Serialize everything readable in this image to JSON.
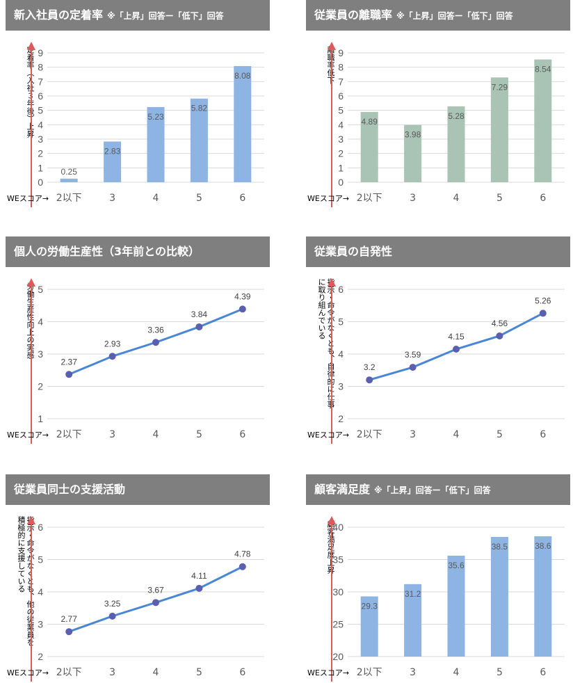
{
  "x_prefix": "WEスコア→",
  "colors": {
    "bar_blue": "#8db4e2",
    "bar_green": "#a9c4b5",
    "line": "#4a86d6",
    "marker": "#5a5fb0",
    "axis_arrow": "#e0595a",
    "header": "#7f7f7f"
  },
  "charts": [
    {
      "title": "新入社員の定着率",
      "note": "※「上昇」回答ー「低下」回答",
      "ylabel": "定着率（入社３年後）上昇",
      "chart_data": {
        "type": "bar",
        "categories": [
          "2以下",
          "3",
          "4",
          "5",
          "6"
        ],
        "values": [
          0.25,
          2.83,
          5.23,
          5.82,
          8.08
        ],
        "ylim": [
          0,
          9
        ],
        "yticks": [
          "0",
          "1",
          "2",
          "3",
          "4",
          "5",
          "6",
          "7",
          "8",
          "9"
        ],
        "color": "bar_blue"
      }
    },
    {
      "title": "従業員の離職率",
      "note": "※「上昇」回答ー「低下」回答",
      "ylabel": "離職率低下",
      "chart_data": {
        "type": "bar",
        "categories": [
          "2以下",
          "3",
          "4",
          "5",
          "6"
        ],
        "values": [
          4.89,
          3.98,
          5.28,
          7.29,
          8.54
        ],
        "ylim": [
          0,
          9
        ],
        "yticks": [
          "0",
          "1",
          "2",
          "3",
          "4",
          "5",
          "6",
          "7",
          "8",
          "9"
        ],
        "color": "bar_green"
      }
    },
    {
      "title": "個人の労働生産性（3年前との比較）",
      "note": "",
      "ylabel": "労働生産性向上の実感",
      "chart_data": {
        "type": "line",
        "categories": [
          "2以下",
          "3",
          "4",
          "5",
          "6"
        ],
        "values": [
          2.37,
          2.93,
          3.36,
          3.84,
          4.39
        ],
        "ylim": [
          1,
          5
        ],
        "yticks": [
          "1",
          "2",
          "3",
          "4",
          "5"
        ]
      }
    },
    {
      "title": "従業員の自発性",
      "note": "",
      "ylabel": "指示・命令がなくとも、自律的に仕事に取り組んでいる",
      "chart_data": {
        "type": "line",
        "categories": [
          "2以下",
          "3",
          "4",
          "5",
          "6"
        ],
        "values": [
          3.2,
          3.59,
          4.15,
          4.56,
          5.26
        ],
        "ylim": [
          2,
          6
        ],
        "yticks": [
          "2",
          "3",
          "4",
          "5",
          "6"
        ]
      }
    },
    {
      "title": "従業員同士の支援活動",
      "note": "",
      "ylabel": "指示・命令がなくとも、他の従業員を積極的に支援している",
      "chart_data": {
        "type": "line",
        "categories": [
          "2以下",
          "3",
          "4",
          "5",
          "6"
        ],
        "values": [
          2.77,
          3.25,
          3.67,
          4.11,
          4.78
        ],
        "ylim": [
          2,
          6
        ],
        "yticks": [
          "2",
          "3",
          "4",
          "5",
          "6"
        ]
      }
    },
    {
      "title": "顧客満足度",
      "note": "※「上昇」回答ー「低下」回答",
      "ylabel": "顧客満足度上昇",
      "chart_data": {
        "type": "bar",
        "categories": [
          "2以下",
          "3",
          "4",
          "5",
          "6"
        ],
        "values": [
          29.3,
          31.2,
          35.6,
          38.5,
          38.6
        ],
        "ylim": [
          20,
          40
        ],
        "yticks": [
          "20",
          "25",
          "30",
          "35",
          "40"
        ],
        "color": "bar_blue"
      }
    }
  ]
}
